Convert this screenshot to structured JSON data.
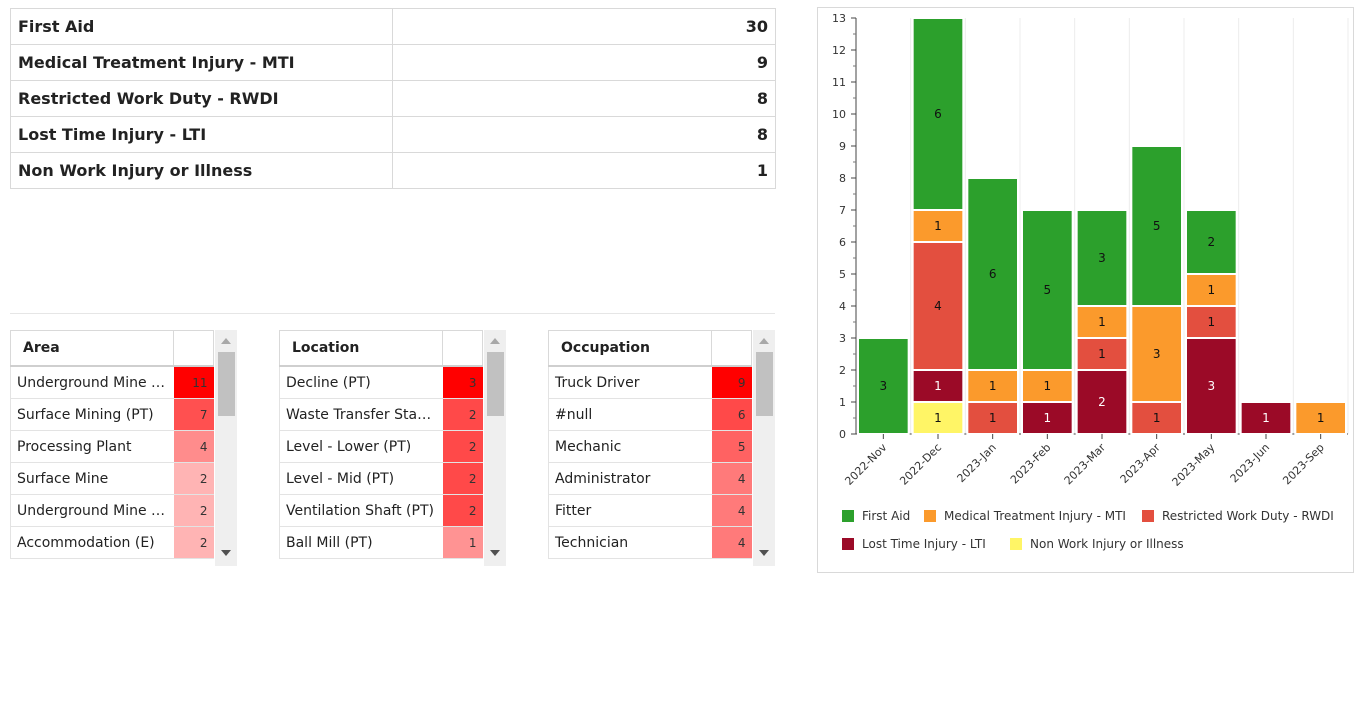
{
  "summary": [
    {
      "label": "First Aid",
      "count": "30"
    },
    {
      "label": "Medical Treatment Injury - MTI",
      "count": "9"
    },
    {
      "label": "Restricted Work Duty - RWDI",
      "count": "8"
    },
    {
      "label": "Lost Time Injury - LTI",
      "count": "8"
    },
    {
      "label": "Non Work Injury or Illness",
      "count": "1"
    }
  ],
  "grids": [
    {
      "header": "Area",
      "rows": [
        {
          "label": "Underground Mine (PT)",
          "value": 11
        },
        {
          "label": "Surface Mining (PT)",
          "value": 7
        },
        {
          "label": "Processing Plant",
          "value": 4
        },
        {
          "label": "Surface Mine",
          "value": 2
        },
        {
          "label": "Underground Mine (E)",
          "value": 2
        },
        {
          "label": "Accommodation (E)",
          "value": 2
        }
      ]
    },
    {
      "header": "Location",
      "rows": [
        {
          "label": "Decline (PT)",
          "value": 3
        },
        {
          "label": "Waste Transfer Station (PT)",
          "value": 2
        },
        {
          "label": "Level - Lower (PT)",
          "value": 2
        },
        {
          "label": "Level - Mid (PT)",
          "value": 2
        },
        {
          "label": "Ventilation Shaft (PT)",
          "value": 2
        },
        {
          "label": "Ball Mill (PT)",
          "value": 1
        }
      ]
    },
    {
      "header": "Occupation",
      "rows": [
        {
          "label": "Truck Driver",
          "value": 9
        },
        {
          "label": "#null",
          "value": 6
        },
        {
          "label": "Mechanic",
          "value": 5
        },
        {
          "label": "Administrator",
          "value": 4
        },
        {
          "label": "Fitter",
          "value": 4
        },
        {
          "label": "Technician",
          "value": 4
        }
      ]
    }
  ],
  "chart_data": {
    "type": "bar",
    "stacked": true,
    "categories": [
      "2022-Nov",
      "2022-Dec",
      "2023-Jan",
      "2023-Feb",
      "2023-Mar",
      "2023-Apr",
      "2023-May",
      "2023-Jun",
      "2023-Sep"
    ],
    "ylim": [
      0,
      13
    ],
    "yticks": [
      0,
      1,
      2,
      3,
      4,
      5,
      6,
      7,
      8,
      9,
      10,
      11,
      12,
      13
    ],
    "legend_position": "bottom",
    "series": [
      {
        "name": "First Aid",
        "color": "#2ca02c",
        "values": [
          3,
          6,
          6,
          5,
          3,
          5,
          2,
          0,
          0
        ]
      },
      {
        "name": "Medical Treatment Injury - MTI",
        "color": "#fb9a2c",
        "values": [
          0,
          1,
          1,
          1,
          1,
          3,
          1,
          0,
          1
        ]
      },
      {
        "name": "Restricted Work Duty - RWDI",
        "color": "#e34f3f",
        "values": [
          0,
          4,
          1,
          0,
          1,
          1,
          1,
          0,
          0
        ]
      },
      {
        "name": "Lost Time Injury - LTI",
        "color": "#9b0a27",
        "values": [
          0,
          1,
          0,
          1,
          2,
          0,
          3,
          1,
          0
        ]
      },
      {
        "name": "Non Work Injury or Illness",
        "color": "#fff566",
        "values": [
          0,
          1,
          0,
          0,
          0,
          0,
          0,
          0,
          0
        ]
      }
    ],
    "stack_order": [
      4,
      3,
      2,
      1,
      0
    ]
  }
}
